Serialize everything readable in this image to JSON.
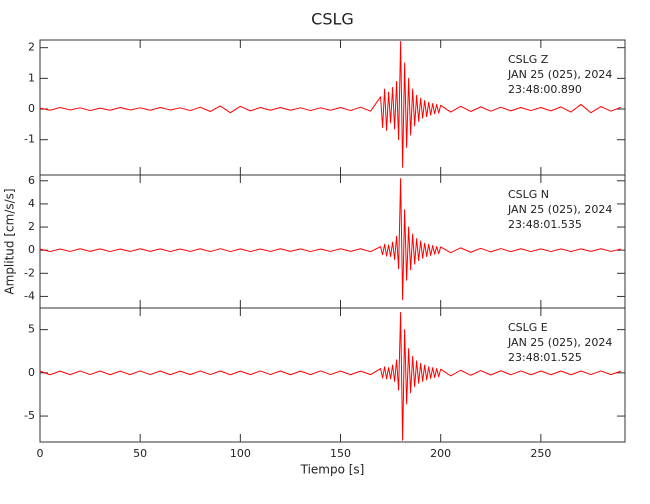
{
  "chart_data": [
    {
      "type": "line",
      "title": "CSLG",
      "annotations": [
        "CSLG   Z",
        "JAN 25 (025), 2024",
        "23:48:00.890"
      ],
      "x": [
        0,
        5,
        10,
        15,
        20,
        25,
        30,
        35,
        40,
        45,
        50,
        55,
        60,
        65,
        70,
        75,
        80,
        85,
        90,
        95,
        100,
        105,
        110,
        115,
        120,
        125,
        130,
        135,
        140,
        145,
        150,
        155,
        160,
        165,
        170,
        171,
        172,
        173,
        174,
        175,
        176,
        177,
        178,
        179,
        180,
        181,
        182,
        183,
        184,
        185,
        186,
        187,
        188,
        189,
        190,
        191,
        192,
        193,
        194,
        195,
        196,
        197,
        198,
        199,
        200,
        205,
        210,
        215,
        220,
        225,
        230,
        235,
        240,
        245,
        250,
        255,
        260,
        265,
        270,
        275,
        280,
        285,
        290
      ],
      "series": [
        {
          "name": "CSLG Z",
          "color": "#ff0000",
          "values": [
            0.03,
            -0.04,
            0.05,
            -0.03,
            0.04,
            -0.05,
            0.03,
            -0.04,
            0.05,
            -0.03,
            0.04,
            -0.04,
            0.05,
            -0.03,
            0.04,
            -0.05,
            0.06,
            -0.08,
            0.1,
            -0.12,
            0.09,
            -0.06,
            0.05,
            -0.04,
            0.05,
            -0.04,
            0.04,
            -0.05,
            0.04,
            -0.04,
            0.05,
            -0.05,
            0.06,
            -0.07,
            0.4,
            -0.6,
            0.65,
            -0.7,
            0.55,
            -0.45,
            0.7,
            -0.65,
            0.9,
            -1.0,
            2.2,
            -1.9,
            1.5,
            -1.25,
            1.0,
            -0.85,
            0.65,
            -0.55,
            0.45,
            -0.4,
            0.35,
            -0.3,
            0.28,
            -0.25,
            0.22,
            -0.2,
            0.18,
            -0.16,
            0.15,
            -0.13,
            0.12,
            -0.1,
            0.09,
            -0.08,
            0.07,
            -0.07,
            0.06,
            -0.06,
            0.05,
            -0.05,
            0.05,
            -0.06,
            0.07,
            -0.1,
            0.15,
            -0.12,
            0.08,
            -0.07,
            0.06
          ]
        }
      ],
      "xlim": [
        0,
        292
      ],
      "xticks": [
        0,
        50,
        100,
        150,
        200,
        250
      ],
      "ylim": [
        -2.15,
        2.25
      ],
      "yticks": [
        -1,
        0,
        1,
        2
      ]
    },
    {
      "type": "line",
      "y_label": "Amplitud [cm/s/s]",
      "annotations": [
        "CSLG   N",
        "JAN 25 (025), 2024",
        "23:48:01.535"
      ],
      "x": [
        0,
        5,
        10,
        15,
        20,
        25,
        30,
        35,
        40,
        45,
        50,
        55,
        60,
        65,
        70,
        75,
        80,
        85,
        90,
        95,
        100,
        105,
        110,
        115,
        120,
        125,
        130,
        135,
        140,
        145,
        150,
        155,
        160,
        165,
        170,
        171,
        172,
        173,
        174,
        175,
        176,
        177,
        178,
        179,
        180,
        181,
        182,
        183,
        184,
        185,
        186,
        187,
        188,
        189,
        190,
        191,
        192,
        193,
        194,
        195,
        196,
        197,
        198,
        199,
        200,
        205,
        210,
        215,
        220,
        225,
        230,
        235,
        240,
        245,
        250,
        255,
        260,
        265,
        270,
        275,
        280,
        285,
        290
      ],
      "series": [
        {
          "name": "CSLG N",
          "color": "#ff0000",
          "values": [
            0.1,
            -0.12,
            0.1,
            -0.11,
            0.12,
            -0.1,
            0.11,
            -0.12,
            0.1,
            -0.11,
            0.12,
            -0.1,
            0.11,
            -0.12,
            0.1,
            -0.11,
            0.12,
            -0.12,
            0.13,
            -0.12,
            0.11,
            -0.12,
            0.1,
            -0.11,
            0.12,
            -0.1,
            0.11,
            -0.12,
            0.1,
            -0.11,
            0.12,
            -0.1,
            0.12,
            -0.13,
            0.3,
            -0.4,
            0.5,
            -0.5,
            0.45,
            -0.55,
            0.7,
            -0.8,
            1.2,
            -1.6,
            6.2,
            -4.3,
            3.5,
            -2.6,
            2.0,
            -1.7,
            1.4,
            -1.2,
            1.0,
            -0.9,
            0.8,
            -0.7,
            0.6,
            -0.55,
            0.5,
            -0.45,
            0.4,
            -0.35,
            0.32,
            -0.3,
            0.28,
            -0.22,
            0.2,
            -0.18,
            0.16,
            -0.15,
            0.14,
            -0.13,
            0.12,
            -0.12,
            0.11,
            -0.12,
            0.11,
            -0.12,
            0.11,
            -0.1,
            0.12,
            -0.11,
            0.1
          ]
        }
      ],
      "xlim": [
        0,
        292
      ],
      "xticks": [
        0,
        50,
        100,
        150,
        200,
        250
      ],
      "ylim": [
        -5,
        6.5
      ],
      "yticks": [
        -4,
        -2,
        0,
        2,
        4,
        6
      ]
    },
    {
      "type": "line",
      "x_label": "Tiempo [s]",
      "annotations": [
        "CSLG   E",
        "JAN 25 (025), 2024",
        "23:48:01.525"
      ],
      "x": [
        0,
        5,
        10,
        15,
        20,
        25,
        30,
        35,
        40,
        45,
        50,
        55,
        60,
        65,
        70,
        75,
        80,
        85,
        90,
        95,
        100,
        105,
        110,
        115,
        120,
        125,
        130,
        135,
        140,
        145,
        150,
        155,
        160,
        165,
        170,
        171,
        172,
        173,
        174,
        175,
        176,
        177,
        178,
        179,
        180,
        181,
        182,
        183,
        184,
        185,
        186,
        187,
        188,
        189,
        190,
        191,
        192,
        193,
        194,
        195,
        196,
        197,
        198,
        199,
        200,
        205,
        210,
        215,
        220,
        225,
        230,
        235,
        240,
        245,
        250,
        255,
        260,
        265,
        270,
        275,
        280,
        285,
        290
      ],
      "series": [
        {
          "name": "CSLG E",
          "color": "#ff0000",
          "values": [
            0.2,
            -0.22,
            0.2,
            -0.21,
            0.22,
            -0.2,
            0.21,
            -0.22,
            0.2,
            -0.21,
            0.22,
            -0.2,
            0.21,
            -0.22,
            0.2,
            -0.21,
            0.22,
            -0.2,
            0.21,
            -0.22,
            0.2,
            -0.21,
            0.22,
            -0.2,
            0.21,
            -0.22,
            0.2,
            -0.21,
            0.22,
            -0.2,
            0.21,
            -0.22,
            0.2,
            -0.21,
            0.5,
            -0.6,
            0.7,
            -0.7,
            0.6,
            -0.7,
            0.9,
            -1.0,
            1.5,
            -2.0,
            7.0,
            -7.8,
            5.0,
            -3.6,
            2.8,
            -2.3,
            1.9,
            -1.6,
            1.4,
            -1.2,
            1.1,
            -1.0,
            0.9,
            -0.8,
            0.7,
            -0.65,
            0.6,
            -0.55,
            0.5,
            -0.45,
            0.42,
            -0.35,
            0.3,
            -0.28,
            0.26,
            -0.25,
            0.24,
            -0.23,
            0.22,
            -0.22,
            0.21,
            -0.22,
            0.21,
            -0.22,
            0.21,
            -0.2,
            0.22,
            -0.21,
            0.2
          ]
        }
      ],
      "xlim": [
        0,
        292
      ],
      "xticks": [
        0,
        50,
        100,
        150,
        200,
        250
      ],
      "ylim": [
        -8,
        7.5
      ],
      "yticks": [
        -5,
        0,
        5
      ]
    }
  ]
}
